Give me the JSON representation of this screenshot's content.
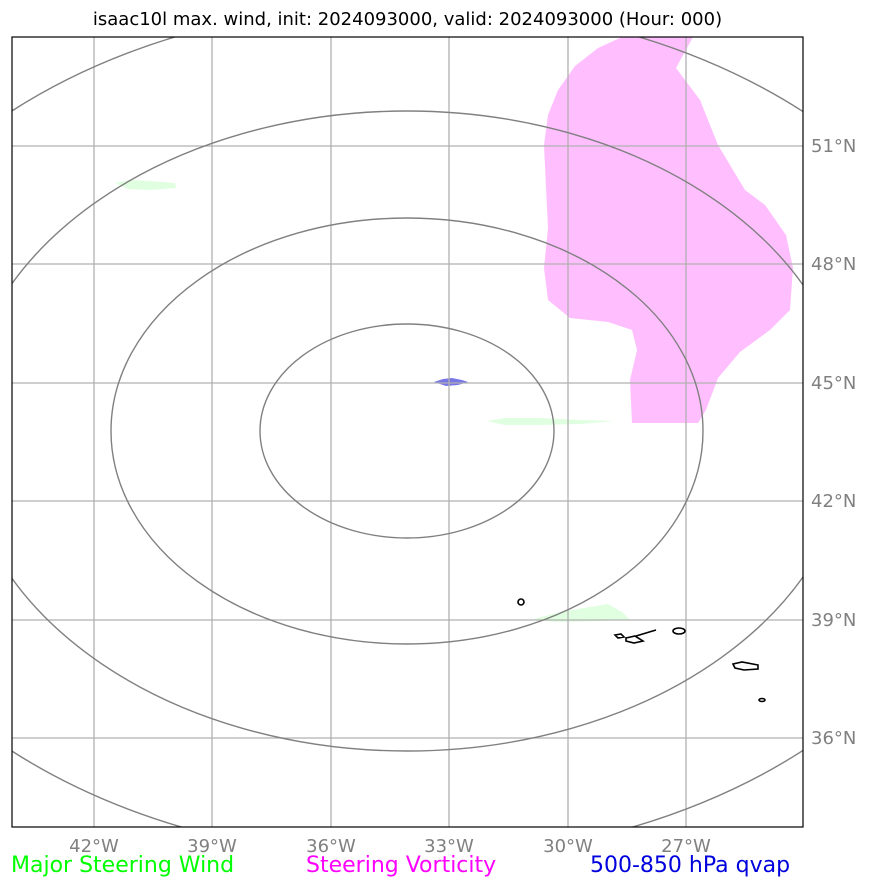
{
  "title": "isaac10l max. wind, init: 2024093000, valid: 2024093000 (Hour: 000)",
  "map": {
    "lon_ticks": [
      "42°W",
      "39°W",
      "36°W",
      "33°W",
      "30°W",
      "27°W"
    ],
    "lat_ticks": [
      "51°N",
      "48°N",
      "45°N",
      "42°N",
      "39°N",
      "36°N"
    ],
    "colors": {
      "steering_vorticity_fill": "#ffbfff",
      "major_steering_wind_fill": "#e0ffe0",
      "qvap_fill": "#7777e6",
      "range_rings": "#808080",
      "gridlines": "#b0b0b0",
      "coastline": "#000000"
    }
  },
  "legend": [
    {
      "label": "Major Steering Wind",
      "color": "#00ff00"
    },
    {
      "label": "Steering Vorticity",
      "color": "#ff00ff"
    },
    {
      "label": "500-850 hPa qvap",
      "color": "#0000dd"
    }
  ]
}
